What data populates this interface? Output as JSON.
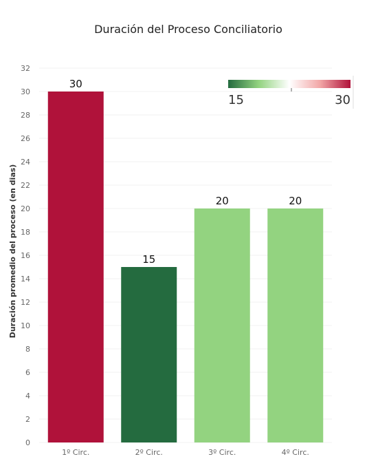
{
  "chart_data": {
    "type": "bar",
    "title": "Duración del Proceso Conciliatorio",
    "xlabel": "",
    "ylabel": "Duración promedio del proceso (en dias)",
    "categories": [
      "1º Circ.",
      "2º Circ.",
      "3º Circ.",
      "4º Circ."
    ],
    "values": [
      30,
      15,
      20,
      20
    ],
    "data_labels": [
      "30",
      "15",
      "20",
      "20"
    ],
    "ylim": [
      0,
      32
    ],
    "yticks": [
      0,
      2,
      4,
      6,
      8,
      10,
      12,
      14,
      16,
      18,
      20,
      22,
      24,
      26,
      28,
      30,
      32
    ],
    "grid": true,
    "bar_colors": [
      "#b0123a",
      "#246b3f",
      "#93d380",
      "#93d380"
    ],
    "color_legend": {
      "position": "top-right",
      "min_label": "15",
      "max_label": "30",
      "gradient": [
        "#246b3f",
        "#93d380",
        "#ffffff",
        "#f2a7a7",
        "#b0123a"
      ]
    }
  }
}
